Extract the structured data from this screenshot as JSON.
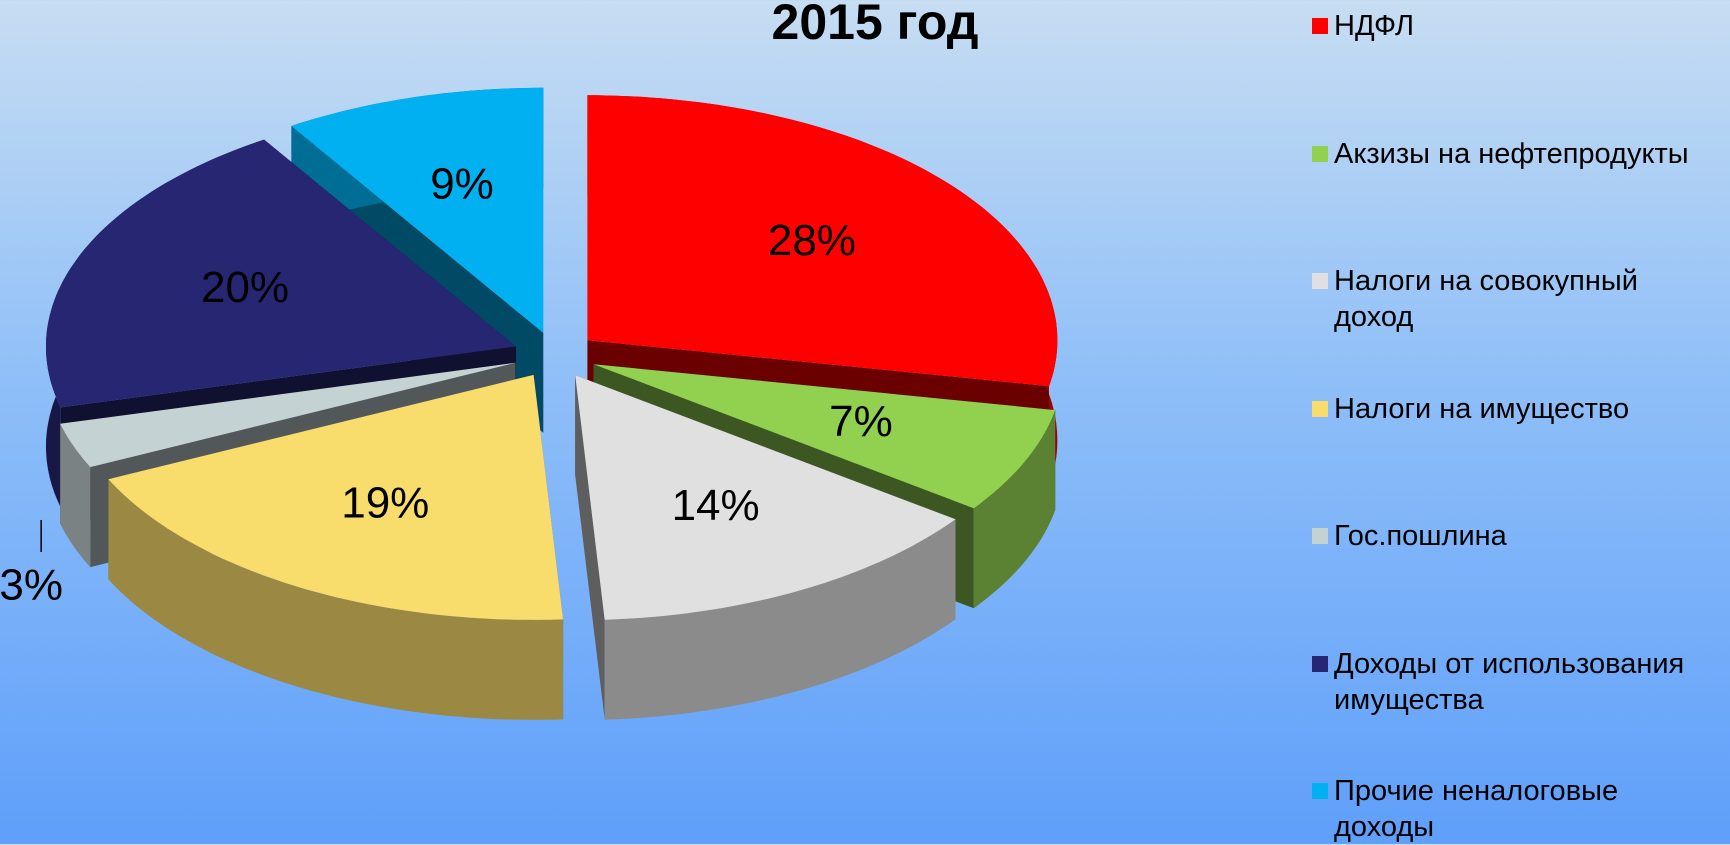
{
  "chart_data": {
    "type": "pie",
    "title": "2015 год",
    "categories": [
      "НДФЛ",
      "Акзизы на нефтепродукты",
      "Налоги на совокупный доход",
      "Налоги на имущество",
      "Гос.пошлина",
      "Доходы от использования имущества",
      "Прочие неналоговые доходы"
    ],
    "values": [
      28,
      7,
      14,
      19,
      3,
      20,
      9
    ],
    "value_labels": [
      "28%",
      "7%",
      "14%",
      "19%",
      "3%",
      "20%",
      "9%"
    ],
    "colors": [
      "#ff0000",
      "#92d050",
      "#e0e0e0",
      "#f8dc6c",
      "#c4d2d4",
      "#262673",
      "#00b0f0"
    ],
    "legend": "right"
  }
}
